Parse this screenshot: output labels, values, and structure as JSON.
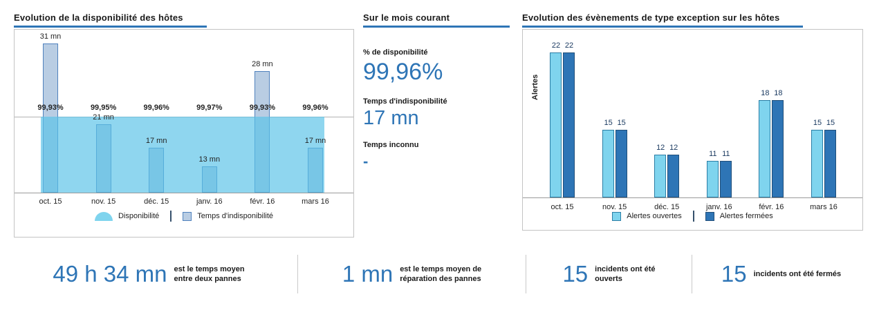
{
  "colors": {
    "accent_blue": "#2e75b6",
    "availability_area": "#7fd4ee",
    "downtime_bar_fill": "#b9cde3",
    "downtime_bar_border": "#4f81bd",
    "open_alerts_bar": "#7fd4ee",
    "closed_alerts_bar": "#2e75b6",
    "value_text": "#17375e"
  },
  "panels": {
    "availability": {
      "title": "Evolution de la disponibilité des hôtes",
      "legend": {
        "area": "Disponibilité",
        "bar": "Temps d'indisponibilité"
      }
    },
    "current_month": {
      "title": "Sur le mois courant",
      "metrics": [
        {
          "label": "% de disponibilité",
          "value": "99,96%"
        },
        {
          "label": "Temps d'indisponibilité",
          "value": "17 mn"
        },
        {
          "label": "Temps inconnu",
          "value": "-"
        }
      ]
    },
    "exceptions": {
      "title": "Evolution des évènements de type exception sur les hôtes",
      "y_axis_label": "Alertes",
      "legend": {
        "open": "Alertes ouvertes",
        "closed": "Alertes fermées"
      }
    }
  },
  "kpis": [
    {
      "value": "49 h 34 mn",
      "description_lines": [
        "est le temps moyen",
        "entre deux pannes"
      ]
    },
    {
      "value": "1 mn",
      "description_lines": [
        "est le temps moyen de",
        "réparation des pannes"
      ]
    },
    {
      "value": "15",
      "description_lines": [
        "incidents ont été",
        "ouverts"
      ]
    },
    {
      "value": "15",
      "description_lines": [
        "incidents ont été fermés"
      ]
    }
  ],
  "chart_data": [
    {
      "type": "bar",
      "title": "Evolution de la disponibilité des hôtes",
      "categories": [
        "oct. 15",
        "nov. 15",
        "déc. 15",
        "janv. 16",
        "févr. 16",
        "mars 16"
      ],
      "series": [
        {
          "name": "Temps d'indisponibilité",
          "unit": "mn",
          "values": [
            31,
            21,
            17,
            13,
            28,
            17
          ],
          "labels": [
            "31 mn",
            "21 mn",
            "17 mn",
            "13 mn",
            "28 mn",
            "17 mn"
          ]
        },
        {
          "name": "Disponibilité",
          "unit": "%",
          "type": "area",
          "values": [
            99.93,
            99.95,
            99.96,
            99.97,
            99.93,
            99.96
          ],
          "labels": [
            "99,93%",
            "99,95%",
            "99,96%",
            "99,97%",
            "99,93%",
            "99,96%"
          ]
        }
      ],
      "legend_position": "bottom"
    },
    {
      "type": "bar",
      "title": "Evolution des évènements de type exception sur les hôtes",
      "ylabel": "Alertes",
      "categories": [
        "oct. 15",
        "nov. 15",
        "déc. 15",
        "janv. 16",
        "févr. 16",
        "mars 16"
      ],
      "series": [
        {
          "name": "Alertes ouvertes",
          "values": [
            22,
            15,
            12,
            11,
            18,
            15
          ]
        },
        {
          "name": "Alertes fermées",
          "values": [
            22,
            15,
            12,
            11,
            18,
            15
          ]
        }
      ],
      "legend_position": "bottom"
    }
  ]
}
